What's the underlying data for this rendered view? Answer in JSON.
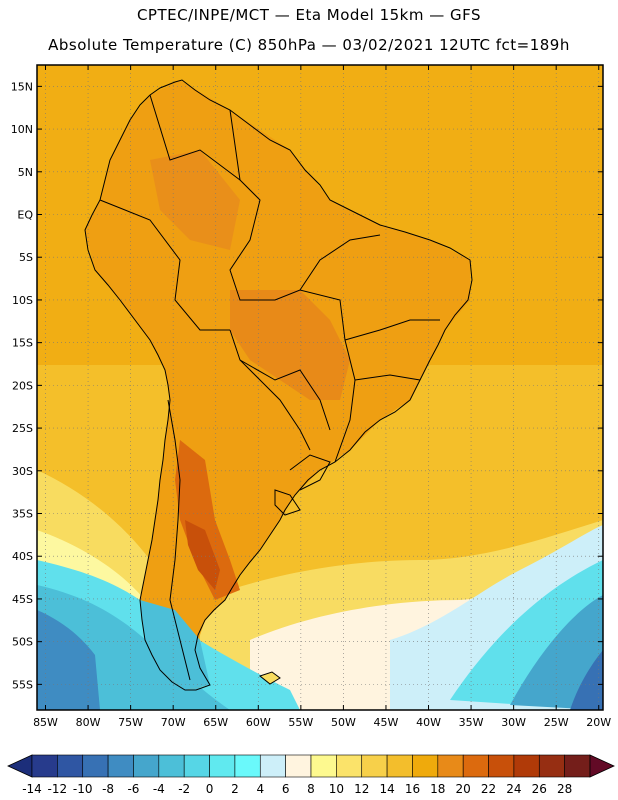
{
  "header": {
    "line1": "CPTEC/INPE/MCT —  Eta Model 15km — GFS",
    "line2": "Absolute Temperature (C) 850hPa — 03/02/2021 12UTC fct=189h"
  },
  "map": {
    "lat_labels": [
      "15N",
      "10N",
      "5N",
      "EQ",
      "5S",
      "10S",
      "15S",
      "20S",
      "25S",
      "30S",
      "35S",
      "40S",
      "45S",
      "50S",
      "55S"
    ],
    "lat_values": [
      15,
      10,
      5,
      0,
      -5,
      -10,
      -15,
      -20,
      -25,
      -30,
      -35,
      -40,
      -45,
      -50,
      -55
    ],
    "lon_labels": [
      "85W",
      "80W",
      "75W",
      "70W",
      "65W",
      "60W",
      "55W",
      "50W",
      "45W",
      "40W",
      "35W",
      "30W",
      "25W",
      "20W"
    ],
    "lon_values": [
      -85,
      -80,
      -75,
      -70,
      -65,
      -60,
      -55,
      -50,
      -45,
      -40,
      -35,
      -30,
      -25,
      -20
    ],
    "lat_range": [
      -58,
      17.5
    ],
    "lon_range": [
      -86,
      -19.5
    ]
  },
  "colorbar": {
    "labels": [
      "-14",
      "-12",
      "-10",
      "-8",
      "-6",
      "-4",
      "-2",
      "0",
      "2",
      "4",
      "6",
      "8",
      "10",
      "12",
      "14",
      "16",
      "18",
      "20",
      "22",
      "24",
      "26",
      "28"
    ],
    "colors": [
      "#273b8c",
      "#2f56a3",
      "#3771b4",
      "#3f8cc2",
      "#45a6cc",
      "#4cbfd8",
      "#56d6e6",
      "#60e9ef",
      "#6af9fb",
      "#cdeff9",
      "#fff4df",
      "#fdf98f",
      "#fbe36a",
      "#f7d04a",
      "#f3be2c",
      "#efaa0c",
      "#e88a18",
      "#dc6a0e",
      "#c8500a",
      "#b03a08",
      "#962e12",
      "#741e1a"
    ],
    "under_color": "#1c2e7a",
    "over_color": "#620a26"
  },
  "colors": {
    "land_base": "#f2ae16",
    "ocean_base": "#f4bf2a",
    "boundary": "#000000"
  }
}
